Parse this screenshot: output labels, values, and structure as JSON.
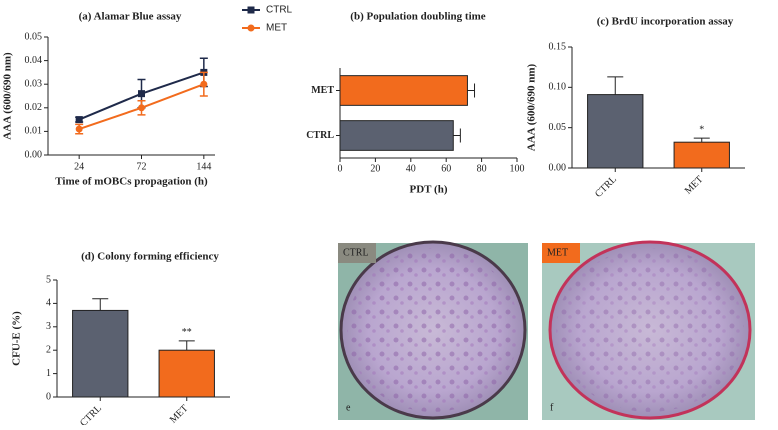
{
  "chart_data": [
    {
      "type": "line",
      "title": "(a) Alamar Blue assay",
      "xlabel": "Time of mOBCs propagation (h)",
      "ylabel": "AAA (600/690 nm)",
      "categories": [
        "24",
        "72",
        "144"
      ],
      "series": [
        {
          "name": "CTRL",
          "color": "#1f2a4a",
          "marker": "square",
          "values": [
            0.015,
            0.026,
            0.035
          ],
          "errors": [
            0.001,
            0.006,
            0.006
          ]
        },
        {
          "name": "MET",
          "color": "#f26b1d",
          "marker": "circle",
          "values": [
            0.011,
            0.02,
            0.03
          ],
          "errors": [
            0.002,
            0.003,
            0.005
          ]
        }
      ],
      "ylim": [
        0,
        0.05
      ],
      "yticks": [
        {
          "value": 0,
          "label": "0.00"
        },
        0.01,
        0.02,
        0.03,
        0.04,
        0.05
      ],
      "legend": "outside-right"
    },
    {
      "type": "bar",
      "orientation": "horizontal",
      "title": "(b) Population doubling time",
      "xlabel": "PDT (h)",
      "categories": [
        "MET",
        "CTRL"
      ],
      "values": [
        72,
        64
      ],
      "errors": [
        4,
        4
      ],
      "colors": [
        "#f26b1d",
        "#5b6170"
      ],
      "xlim": [
        0,
        100
      ],
      "xticks": [
        0,
        20,
        40,
        60,
        80,
        100
      ]
    },
    {
      "type": "bar",
      "title": "(c) BrdU incorporation assay",
      "ylabel": "AAA (600/690 nm)",
      "categories": [
        "CTRL",
        "MET"
      ],
      "values": [
        0.091,
        0.032
      ],
      "errors": [
        0.022,
        0.005
      ],
      "colors": [
        "#5b6170",
        "#f26b1d"
      ],
      "ylim": [
        0,
        0.15
      ],
      "yticks": [
        {
          "value": 0,
          "label": "0.00"
        },
        0.05,
        {
          "value": 0.1,
          "label": "0.10"
        },
        0.15
      ],
      "xtick_rotation": -45,
      "annotations": [
        {
          "category": "MET",
          "text": "*"
        }
      ]
    },
    {
      "type": "bar",
      "title": "(d) Colony forming efficiency",
      "ylabel": "CFU-E (%)",
      "categories": [
        "CTRL",
        "MET"
      ],
      "values": [
        3.7,
        2.0
      ],
      "errors": [
        0.5,
        0.4
      ],
      "colors": [
        "#5b6170",
        "#f26b1d"
      ],
      "ylim": [
        0,
        5
      ],
      "yticks": [
        0,
        1,
        2,
        3,
        4,
        5
      ],
      "xtick_rotation": -45,
      "annotations": [
        {
          "category": "MET",
          "text": "**"
        }
      ]
    }
  ],
  "photos": [
    {
      "label": "CTRL",
      "letter": "e",
      "color": "#8a8a80"
    },
    {
      "label": "MET",
      "letter": "f",
      "color": "#f26b1d"
    }
  ]
}
